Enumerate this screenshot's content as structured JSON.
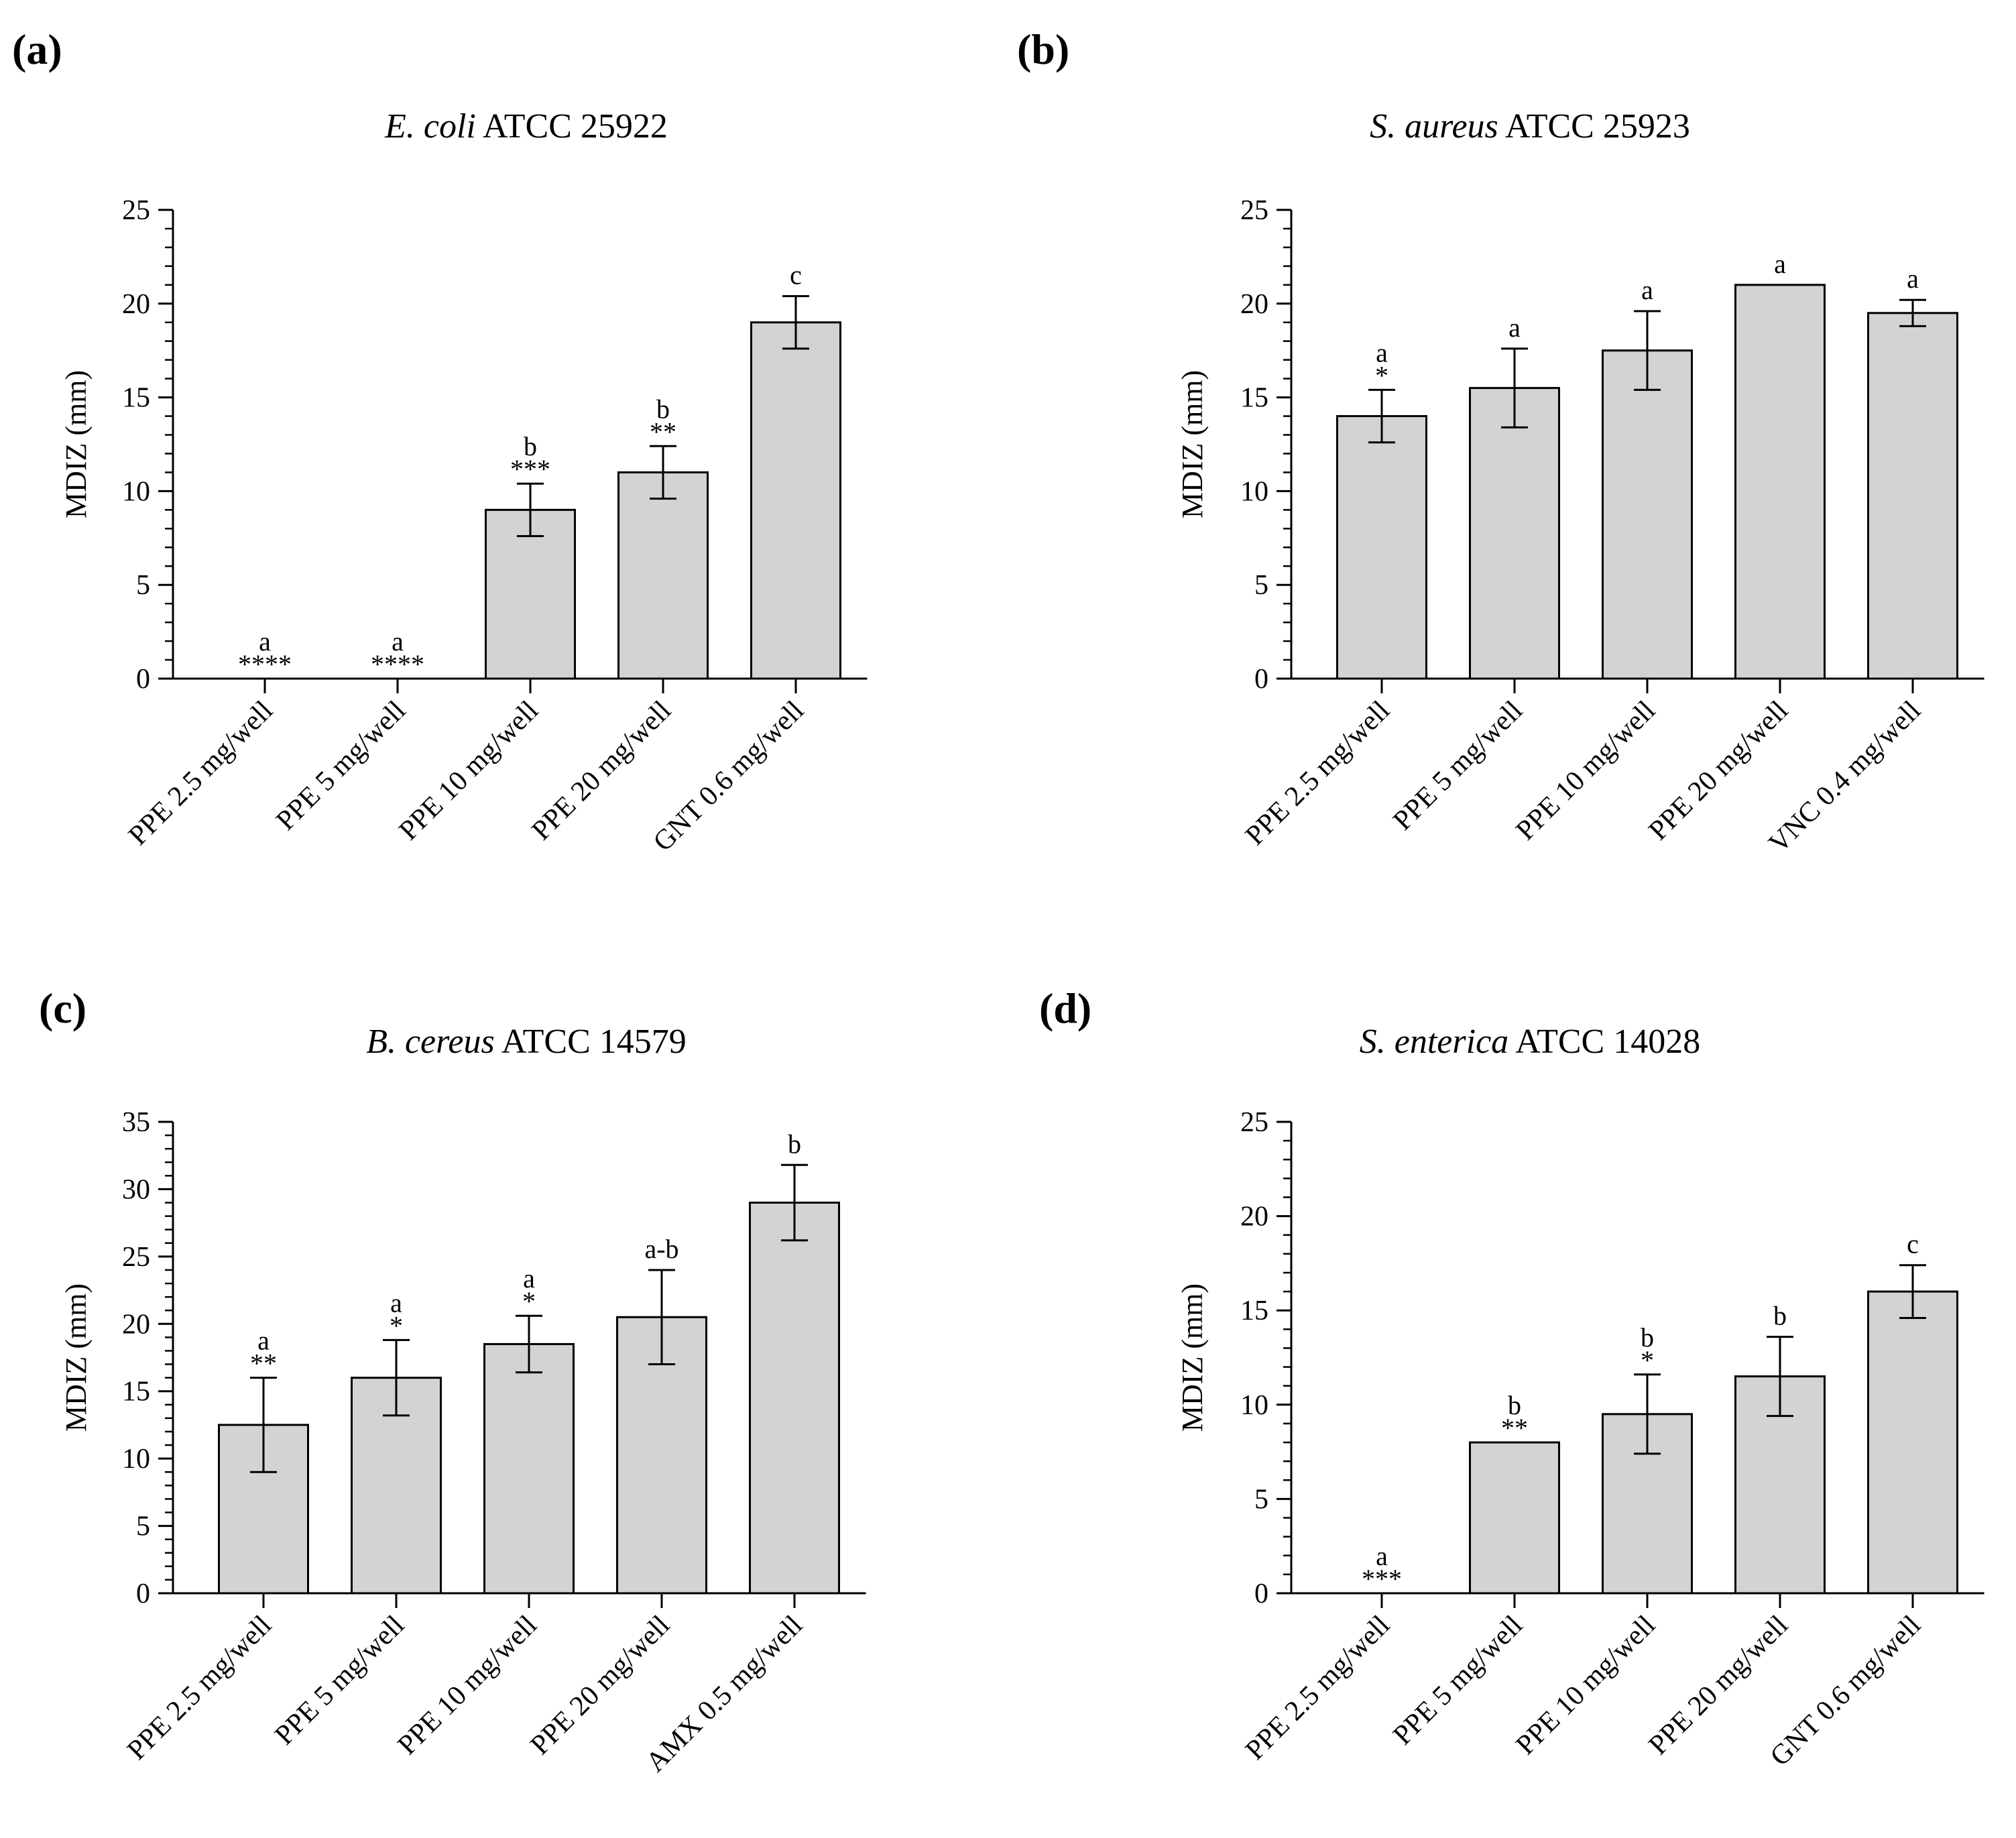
{
  "chart_data": [
    {
      "type": "bar",
      "panel": "(a)",
      "title_italic": "E. coli",
      "title_rest": " ATCC 25922",
      "ylabel": "MDIZ (mm)",
      "ylim": [
        0,
        25
      ],
      "yticks": [
        0,
        5,
        10,
        15,
        20,
        25
      ],
      "categories": [
        "PPE 2.5 mg/well",
        "PPE 5 mg/well",
        "PPE 10 mg/well",
        "PPE 20 mg/well",
        "GNT 0.6 mg/well"
      ],
      "values": [
        0,
        0,
        9,
        11,
        19
      ],
      "errors": [
        0,
        0,
        1.4,
        1.4,
        1.4
      ],
      "letters": [
        "a",
        "a",
        "b",
        "b",
        "c"
      ],
      "significance": [
        "****",
        "****",
        "***",
        "**",
        ""
      ],
      "bar_color": "#d3d3d3"
    },
    {
      "type": "bar",
      "panel": "(b)",
      "title_italic": "S. aureus",
      "title_rest": " ATCC 25923",
      "ylabel": "MDIZ (mm)",
      "ylim": [
        0,
        25
      ],
      "yticks": [
        0,
        5,
        10,
        15,
        20,
        25
      ],
      "categories": [
        "PPE 2.5 mg/well",
        "PPE 5 mg/well",
        "PPE 10 mg/well",
        "PPE 20 mg/well",
        "VNC 0.4 mg/well"
      ],
      "values": [
        14,
        15.5,
        17.5,
        21,
        19.5
      ],
      "errors": [
        1.4,
        2.1,
        2.1,
        0,
        0.7
      ],
      "letters": [
        "a",
        "a",
        "a",
        "a",
        "a"
      ],
      "significance": [
        "*",
        "",
        "",
        "",
        ""
      ],
      "bar_color": "#d3d3d3"
    },
    {
      "type": "bar",
      "panel": "(c)",
      "title_italic": "B. cereus",
      "title_rest": " ATCC 14579",
      "ylabel": "MDIZ (mm)",
      "ylim": [
        0,
        35
      ],
      "yticks": [
        0,
        5,
        10,
        15,
        20,
        25,
        30,
        35
      ],
      "categories": [
        "PPE 2.5 mg/well",
        "PPE 5 mg/well",
        "PPE 10 mg/well",
        "PPE 20 mg/well",
        "AMX 0.5 mg/well"
      ],
      "values": [
        12.5,
        16,
        18.5,
        20.5,
        29
      ],
      "errors": [
        3.5,
        2.8,
        2.1,
        3.5,
        2.8
      ],
      "letters": [
        "a",
        "a",
        "a",
        "a-b",
        "b"
      ],
      "significance": [
        "**",
        "*",
        "*",
        "",
        ""
      ],
      "bar_color": "#d3d3d3"
    },
    {
      "type": "bar",
      "panel": "(d)",
      "title_italic": "S. enterica",
      "title_rest": " ATCC 14028",
      "ylabel": "MDIZ (mm)",
      "ylim": [
        0,
        25
      ],
      "yticks": [
        0,
        5,
        10,
        15,
        20,
        25
      ],
      "categories": [
        "PPE 2.5 mg/well",
        "PPE 5 mg/well",
        "PPE 10 mg/well",
        "PPE 20 mg/well",
        "GNT 0.6 mg/well"
      ],
      "values": [
        0,
        8,
        9.5,
        11.5,
        16
      ],
      "errors": [
        0,
        0,
        2.1,
        2.1,
        1.4
      ],
      "letters": [
        "a",
        "b",
        "b",
        "b",
        "c"
      ],
      "significance": [
        "***",
        "**",
        "*",
        "",
        ""
      ],
      "bar_color": "#d3d3d3"
    }
  ]
}
